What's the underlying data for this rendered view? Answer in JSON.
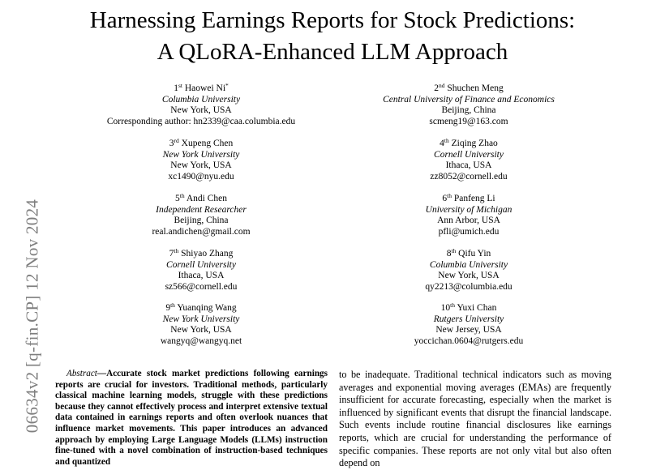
{
  "paper": {
    "title_line1": "Harnessing Earnings Reports for Stock Predictions:",
    "title_line2": "A QLoRA-Enhanced LLM Approach"
  },
  "arxiv_stamp": "06634v2  [q-fin.CP]  12 Nov 2024",
  "authors": [
    {
      "ord": "1",
      "sup": "st",
      "name": "Haowei Ni",
      "mark": "*",
      "affiliation": "Columbia University",
      "location": "New York, USA",
      "email": "Corresponding author: hn2339@caa.columbia.edu"
    },
    {
      "ord": "2",
      "sup": "nd",
      "name": "Shuchen Meng",
      "affiliation": "Central University of Finance and Economics",
      "location": "Beijing, China",
      "email": "scmeng19@163.com"
    },
    {
      "ord": "3",
      "sup": "rd",
      "name": "Xupeng Chen",
      "affiliation": "New York University",
      "location": "New York, USA",
      "email": "xc1490@nyu.edu"
    },
    {
      "ord": "4",
      "sup": "th",
      "name": "Ziqing Zhao",
      "affiliation": "Cornell University",
      "location": "Ithaca, USA",
      "email": "zz8052@cornell.edu"
    },
    {
      "ord": "5",
      "sup": "th",
      "name": "Andi Chen",
      "affiliation": "Independent Researcher",
      "location": "Beijing, China",
      "email": "real.andichen@gmail.com"
    },
    {
      "ord": "6",
      "sup": "th",
      "name": "Panfeng Li",
      "affiliation": "University of Michigan",
      "location": "Ann Arbor, USA",
      "email": "pfli@umich.edu"
    },
    {
      "ord": "7",
      "sup": "th",
      "name": "Shiyao Zhang",
      "affiliation": "Cornell University",
      "location": "Ithaca, USA",
      "email": "sz566@cornell.edu"
    },
    {
      "ord": "8",
      "sup": "th",
      "name": "Qifu Yin",
      "affiliation": "Columbia University",
      "location": "New York, USA",
      "email": "qy2213@columbia.edu"
    },
    {
      "ord": "9",
      "sup": "th",
      "name": "Yuanqing Wang",
      "affiliation": "New York University",
      "location": "New York, USA",
      "email": "wangyq@wangyq.net"
    },
    {
      "ord": "10",
      "sup": "th",
      "name": "Yuxi Chan",
      "affiliation": "Rutgers University",
      "location": "New Jersey, USA",
      "email": "yoccichan.0604@rutgers.edu"
    }
  ],
  "abstract": {
    "label": "Abstract",
    "text": "—Accurate stock market predictions following earnings reports are crucial for investors. Traditional methods, particularly classical machine learning models, struggle with these predictions because they cannot effectively process and interpret extensive textual data contained in earnings reports and often overlook nuances that influence market movements. This paper introduces an advanced approach by employing Large Language Models (LLMs) instruction fine-tuned with a novel combination of instruction-based techniques and quantized"
  },
  "intro_text": "to be inadequate. Traditional technical indicators such as moving averages and exponential moving averages (EMAs) are frequently insufficient for accurate forecasting, especially when the market is influenced by significant events that disrupt the financial landscape. Such events include routine financial disclosures like earnings reports, which are crucial for understanding the performance of specific companies. These reports are not only vital but also often depend on"
}
